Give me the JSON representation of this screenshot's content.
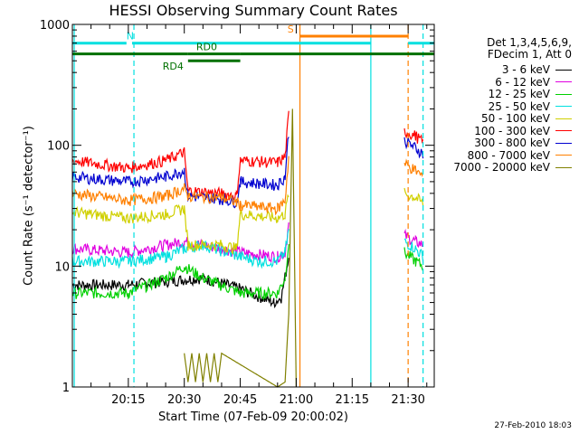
{
  "chart_data": {
    "type": "line",
    "title": "HESSI Observing Summary Count Rates",
    "xlabel": "Start Time (07-Feb-09 20:00:02)",
    "ylabel": "Count Rate (s⁻¹ detector⁻¹)",
    "ylog": true,
    "xlim": [
      0,
      97
    ],
    "ylim": [
      1,
      1000
    ],
    "x_ticks": [
      {
        "t": 15,
        "label": "20:15"
      },
      {
        "t": 30,
        "label": "20:30"
      },
      {
        "t": 45,
        "label": "20:45"
      },
      {
        "t": 60,
        "label": "21:00"
      },
      {
        "t": 75,
        "label": "21:15"
      },
      {
        "t": 90,
        "label": "21:30"
      }
    ],
    "y_ticks": [
      {
        "v": 1,
        "label": "1"
      },
      {
        "v": 10,
        "label": "10"
      },
      {
        "v": 100,
        "label": "100"
      },
      {
        "v": 1000,
        "label": "1000"
      }
    ],
    "legend_header": [
      "Det 1,3,4,5,6,9,",
      "FDecim 1, Att 0"
    ],
    "series": [
      {
        "name": "3 - 6 keV",
        "color": "#000000",
        "values": [
          [
            0,
            7
          ],
          [
            15,
            7
          ],
          [
            25,
            7.5
          ],
          [
            35,
            8
          ],
          [
            45,
            6.5
          ],
          [
            54,
            5
          ],
          [
            56,
            5.5
          ],
          [
            58,
            12
          ]
        ]
      },
      {
        "name": "6 - 12 keV",
        "color": "#e000e0",
        "values": [
          [
            0,
            14
          ],
          [
            15,
            13
          ],
          [
            25,
            15
          ],
          [
            30,
            16
          ],
          [
            40,
            14
          ],
          [
            45,
            13
          ],
          [
            55,
            12
          ],
          [
            57,
            13
          ],
          [
            58,
            22
          ],
          [
            89,
            18
          ],
          [
            92,
            16
          ],
          [
            94,
            15
          ]
        ]
      },
      {
        "name": "12 - 25 keV",
        "color": "#00d000",
        "values": [
          [
            0,
            6
          ],
          [
            15,
            6
          ],
          [
            25,
            8
          ],
          [
            30,
            10
          ],
          [
            35,
            8
          ],
          [
            45,
            6
          ],
          [
            55,
            6
          ],
          [
            57,
            8
          ],
          [
            58,
            16
          ],
          [
            89,
            13
          ],
          [
            92,
            11
          ],
          [
            94,
            10
          ]
        ]
      },
      {
        "name": "25 - 50 keV",
        "color": "#00e0e0",
        "values": [
          [
            0,
            11
          ],
          [
            15,
            11
          ],
          [
            25,
            12
          ],
          [
            30,
            14
          ],
          [
            35,
            15
          ],
          [
            45,
            12
          ],
          [
            50,
            11
          ],
          [
            55,
            11
          ],
          [
            57,
            13
          ],
          [
            58,
            20
          ],
          [
            89,
            16
          ],
          [
            92,
            14
          ],
          [
            94,
            12
          ]
        ]
      },
      {
        "name": "50 - 100 keV",
        "color": "#d0d000",
        "values": [
          [
            0,
            28
          ],
          [
            15,
            25
          ],
          [
            25,
            27
          ],
          [
            30,
            30
          ],
          [
            31,
            15
          ],
          [
            40,
            15
          ],
          [
            44,
            14
          ],
          [
            45,
            27
          ],
          [
            55,
            25
          ],
          [
            57,
            27
          ],
          [
            58,
            40
          ],
          [
            89,
            40
          ],
          [
            92,
            37
          ],
          [
            94,
            33
          ]
        ]
      },
      {
        "name": "100 - 300 keV",
        "color": "#ff0000",
        "values": [
          [
            0,
            75
          ],
          [
            15,
            65
          ],
          [
            25,
            75
          ],
          [
            30,
            88
          ],
          [
            31,
            42
          ],
          [
            40,
            40
          ],
          [
            44,
            38
          ],
          [
            45,
            75
          ],
          [
            55,
            72
          ],
          [
            57,
            80
          ],
          [
            58,
            180
          ],
          [
            89,
            130
          ],
          [
            92,
            120
          ],
          [
            94,
            105
          ]
        ]
      },
      {
        "name": "300 - 800 keV",
        "color": "#0000d0",
        "values": [
          [
            0,
            55
          ],
          [
            15,
            50
          ],
          [
            25,
            55
          ],
          [
            30,
            62
          ],
          [
            31,
            38
          ],
          [
            40,
            36
          ],
          [
            44,
            34
          ],
          [
            45,
            50
          ],
          [
            55,
            47
          ],
          [
            57,
            55
          ],
          [
            58,
            130
          ],
          [
            89,
            110
          ],
          [
            92,
            95
          ],
          [
            94,
            85
          ]
        ]
      },
      {
        "name": "800 - 7000 keV",
        "color": "#ff8000",
        "values": [
          [
            0,
            40
          ],
          [
            15,
            35
          ],
          [
            25,
            38
          ],
          [
            30,
            44
          ],
          [
            31,
            38
          ],
          [
            40,
            37
          ],
          [
            44,
            34
          ],
          [
            45,
            32
          ],
          [
            55,
            30
          ],
          [
            57,
            35
          ],
          [
            58,
            80
          ],
          [
            89,
            70
          ],
          [
            92,
            62
          ],
          [
            94,
            55
          ]
        ]
      },
      {
        "name": "7000 - 20000 keV",
        "color": "#808000",
        "values": [
          [
            30,
            1.9
          ],
          [
            31,
            1.1
          ],
          [
            32,
            1.9
          ],
          [
            33,
            1.1
          ],
          [
            34,
            1.9
          ],
          [
            35,
            1.1
          ],
          [
            36,
            1.9
          ],
          [
            37,
            1.1
          ],
          [
            38,
            1.9
          ],
          [
            39,
            1.1
          ],
          [
            40,
            1.9
          ],
          [
            55,
            1.0
          ],
          [
            57,
            1.1
          ],
          [
            58,
            4
          ],
          [
            59,
            200
          ],
          [
            60,
            1.0
          ]
        ]
      }
    ],
    "flags": [
      {
        "label": "N",
        "color": "#00e0e0",
        "y": 700,
        "segments": [
          [
            0,
            14.5
          ],
          [
            16,
            80
          ]
        ],
        "label_x": 15.5
      },
      {
        "label": "",
        "color": "#00e0e0",
        "y": 700,
        "segments": [
          [
            90,
            97
          ]
        ]
      },
      {
        "label": "RD0",
        "color": "#007000",
        "y": 570,
        "segments": [
          [
            0,
            31
          ],
          [
            31,
            45
          ],
          [
            45,
            97
          ]
        ],
        "label_x": 36
      },
      {
        "label": "RD4",
        "color": "#007000",
        "y": 500,
        "segments": [
          [
            31,
            45
          ]
        ],
        "label_x": 27
      },
      {
        "label": "S",
        "color": "#ff8000",
        "y": 800,
        "segments": [
          [
            61,
            90
          ]
        ],
        "label_x": 58.5
      }
    ],
    "vlines": [
      {
        "x": 0.5,
        "color": "#00e0e0",
        "dash": false
      },
      {
        "x": 16.5,
        "color": "#00e0e0",
        "dash": true
      },
      {
        "x": 61,
        "color": "#ff8000",
        "dash": false
      },
      {
        "x": 80,
        "color": "#00e0e0",
        "dash": false
      },
      {
        "x": 90,
        "color": "#ff8000",
        "dash": true
      },
      {
        "x": 94,
        "color": "#00e0e0",
        "dash": true
      }
    ],
    "timestamp": "27-Feb-2010 18:03"
  }
}
